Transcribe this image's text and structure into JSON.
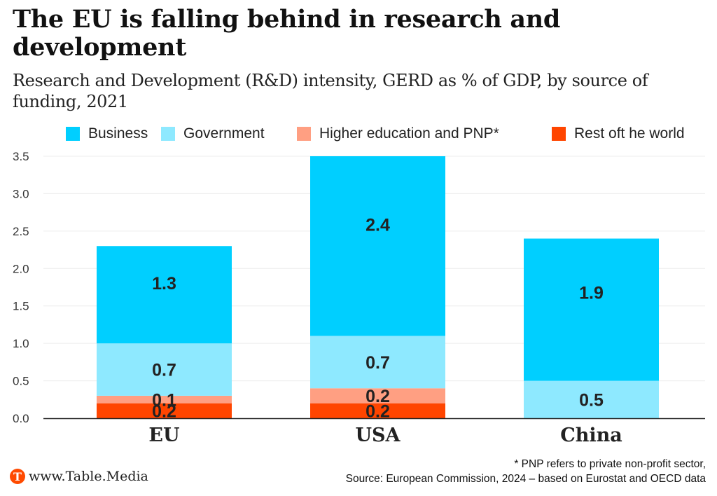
{
  "header": {
    "title": "The EU is falling behind in research and development",
    "subtitle": "Research and Development (R&D) intensity, GERD as % of GDP, by source of funding, 2021"
  },
  "legend": [
    {
      "label": "Business",
      "color": "#00cfff"
    },
    {
      "label": "Government",
      "color": "#8ee9ff"
    },
    {
      "label": "Higher education and PNP*",
      "color": "#ff9f82"
    },
    {
      "label": "Rest oft he world",
      "color": "#ff4500"
    }
  ],
  "chart_data": {
    "type": "bar",
    "stacked": true,
    "title": "The EU is falling behind in research and development",
    "subtitle": "Research and Development (R&D) intensity, GERD as % of GDP, by source of funding, 2021",
    "xlabel": "",
    "ylabel": "",
    "categories": [
      "EU",
      "USA",
      "China"
    ],
    "series": [
      {
        "name": "Rest oft he world",
        "color": "#ff4500",
        "values": [
          0.2,
          0.2,
          0
        ]
      },
      {
        "name": "Higher education and PNP*",
        "color": "#ff9f82",
        "values": [
          0.1,
          0.2,
          0
        ]
      },
      {
        "name": "Government",
        "color": "#8ee9ff",
        "values": [
          0.7,
          0.7,
          0.5
        ]
      },
      {
        "name": "Business",
        "color": "#00cfff",
        "values": [
          1.3,
          2.4,
          1.9
        ]
      }
    ],
    "ylim": [
      0,
      3.5
    ],
    "yticks": [
      "0.0",
      "0.5",
      "1.0",
      "1.5",
      "2.0",
      "2.5",
      "3.0",
      "3.5"
    ],
    "grid": true,
    "legend_position": "top"
  },
  "footer": {
    "logo_letter": "T",
    "logo_text": "www.Table.Media",
    "note_line1": "* PNP refers to private non-profit sector,",
    "note_line2": "Source: European Commission, 2024 – based on Eurostat and OECD data"
  }
}
